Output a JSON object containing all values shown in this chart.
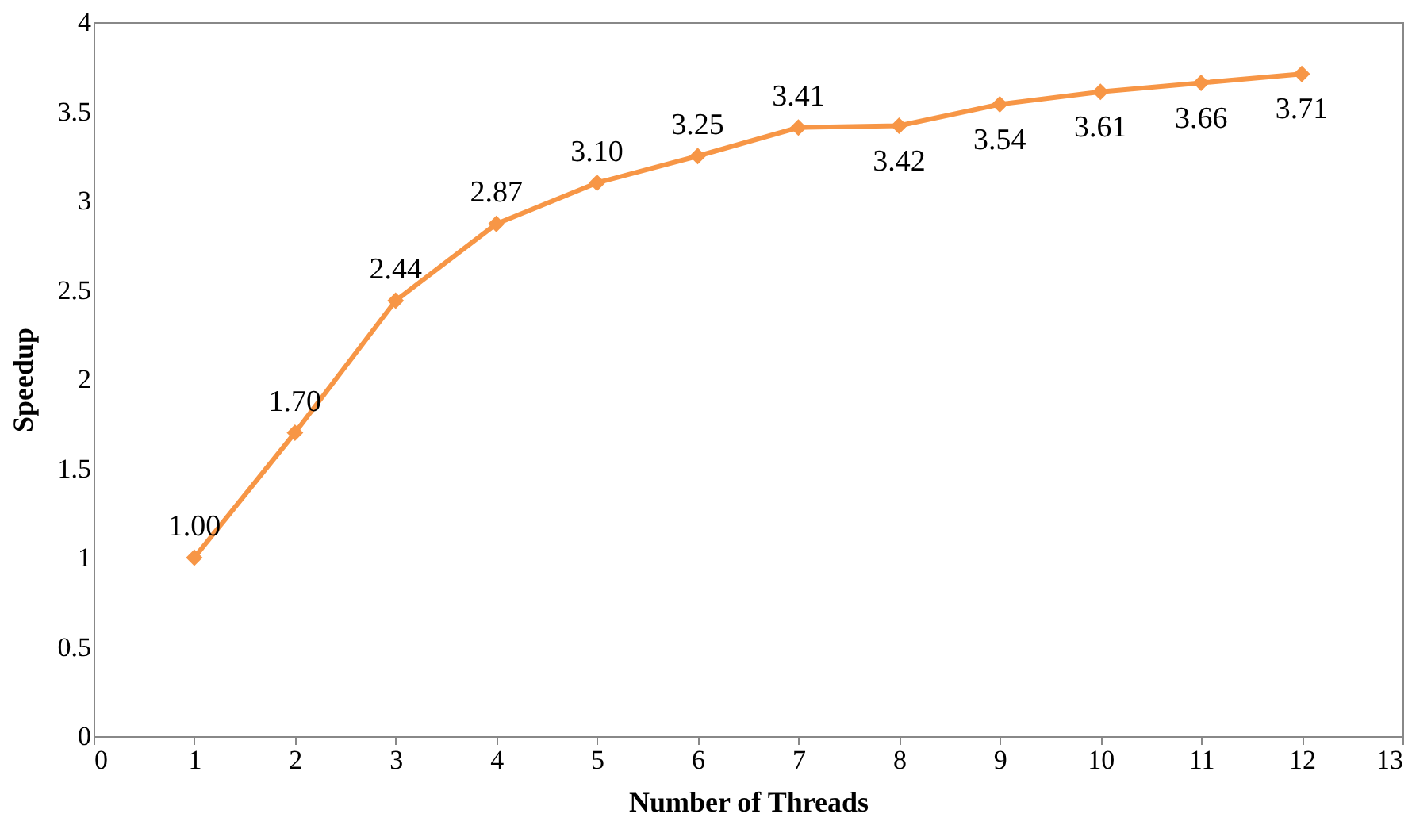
{
  "chart_data": {
    "type": "line",
    "xlabel": "Number of Threads",
    "ylabel": "Speedup",
    "x": [
      1,
      2,
      3,
      4,
      5,
      6,
      7,
      8,
      9,
      10,
      11,
      12
    ],
    "series": [
      {
        "color": "#f79646",
        "values": [
          1.0,
          1.7,
          2.44,
          2.87,
          3.1,
          3.25,
          3.41,
          3.42,
          3.54,
          3.61,
          3.66,
          3.71
        ]
      }
    ],
    "value_labels": [
      "1.00",
      "1.70",
      "2.44",
      "2.87",
      "3.10",
      "3.25",
      "3.41",
      "3.42",
      "3.54",
      "3.61",
      "3.66",
      "3.71"
    ],
    "xlim": [
      0,
      13
    ],
    "xticks": [
      0,
      1,
      2,
      3,
      4,
      5,
      6,
      7,
      8,
      9,
      10,
      11,
      12,
      13
    ],
    "ylim": [
      0,
      4
    ],
    "yticks": [
      0,
      0.5,
      1,
      1.5,
      2,
      2.5,
      3,
      3.5,
      4
    ],
    "marker": "diamond",
    "line_style": "solid"
  }
}
